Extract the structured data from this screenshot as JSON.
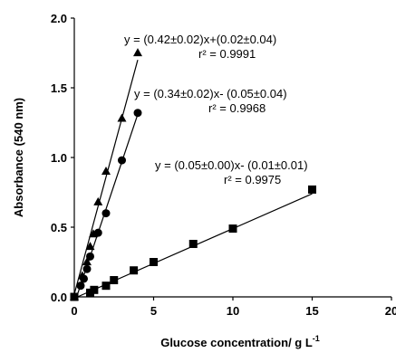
{
  "chart_data": {
    "type": "scatter",
    "xlabel": "Glucose concentration/ g L",
    "xlabel_sup": "-1",
    "ylabel": "Absorbance (540 nm)",
    "xlim": [
      0,
      20
    ],
    "ylim": [
      0,
      2.0
    ],
    "x_ticks": [
      "0",
      "5",
      "10",
      "15",
      "20"
    ],
    "y_ticks": [
      "0.0",
      "0.5",
      "1.0",
      "1.5",
      "2.0"
    ],
    "grid": false,
    "series": [
      {
        "marker": "triangle",
        "x": [
          0,
          0.5,
          0.8,
          1.0,
          1.2,
          1.5,
          2.0,
          3.0,
          4.0
        ],
        "y": [
          0.0,
          0.15,
          0.25,
          0.36,
          0.45,
          0.68,
          0.9,
          1.28,
          1.75
        ],
        "fit": {
          "slope": 0.42,
          "intercept": 0.02
        },
        "equation": "y = (0.42±0.02)x+(0.02±0.04)",
        "r2": "r² = 0.9991"
      },
      {
        "marker": "circle",
        "x": [
          0,
          0.4,
          0.6,
          0.8,
          1.0,
          1.5,
          2.0,
          3.0,
          4.0
        ],
        "y": [
          0.0,
          0.08,
          0.13,
          0.2,
          0.29,
          0.46,
          0.6,
          0.98,
          1.32
        ],
        "fit": {
          "slope": 0.34,
          "intercept": -0.05
        },
        "equation": "y = (0.34±0.02)x- (0.05±0.04)",
        "r2": "r² = 0.9968"
      },
      {
        "marker": "square",
        "x": [
          0,
          1.0,
          1.25,
          2.0,
          2.5,
          3.75,
          5.0,
          7.5,
          10.0,
          15.0
        ],
        "y": [
          0.0,
          0.03,
          0.05,
          0.08,
          0.12,
          0.19,
          0.25,
          0.38,
          0.49,
          0.77
        ],
        "fit": {
          "slope": 0.05,
          "intercept": -0.01
        },
        "equation": "y = (0.05±0.00)x- (0.01±0.01)",
        "r2": "r² = 0.9975"
      }
    ]
  }
}
